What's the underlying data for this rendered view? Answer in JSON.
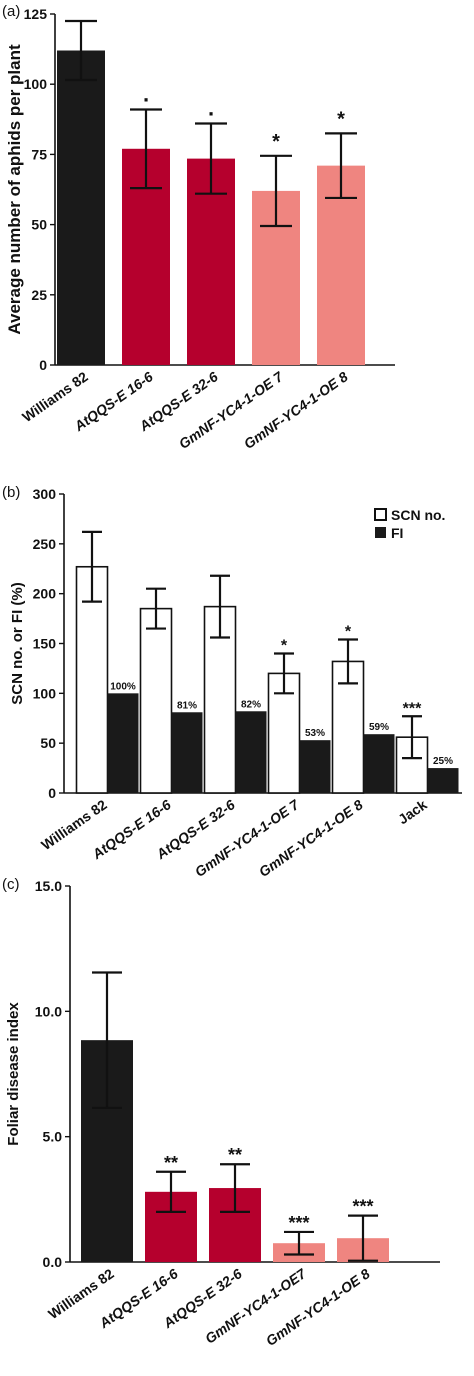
{
  "colors": {
    "black": "#1a1a1a",
    "crimson": "#b5002d",
    "salmon": "#ef8580",
    "white": "#ffffff"
  },
  "chart_data": [
    {
      "panel_label": "(a)",
      "type": "bar",
      "categories": [
        "Williams 82",
        "AtQQS-E 16-6",
        "AtQQS-E 32-6",
        "GmNF-YC4-1-OE 7",
        "GmNF-YC4-1-OE 8"
      ],
      "italic_categories": [
        false,
        true,
        true,
        true,
        true
      ],
      "values": [
        112,
        77,
        73.5,
        62,
        71
      ],
      "errors": [
        10.5,
        14,
        12.5,
        12.5,
        11.5
      ],
      "significance": [
        ".",
        ".",
        ".",
        "*",
        "*"
      ],
      "bar_colors": [
        "black",
        "crimson",
        "crimson",
        "salmon",
        "salmon"
      ],
      "ylabel": "Average number of aphids per plant",
      "xlabel": "",
      "ylim": [
        0,
        125
      ],
      "yticks": [
        "0",
        "25",
        "50",
        "75",
        "100",
        "125"
      ]
    },
    {
      "panel_label": "(b)",
      "type": "bar",
      "categories": [
        "Williams 82",
        "AtQQS-E 16-6",
        "AtQQS-E 32-6",
        "GmNF-YC4-1-OE 7",
        "GmNF-YC4-1-OE 8",
        "Jack"
      ],
      "italic_categories": [
        false,
        true,
        true,
        true,
        true,
        false
      ],
      "series": [
        {
          "name": "SCN no.",
          "values": [
            227,
            185,
            187,
            120,
            132,
            56
          ],
          "errors": [
            35,
            20,
            31,
            20,
            22,
            21
          ],
          "significance": [
            "",
            "",
            "",
            "*",
            "*",
            "***"
          ]
        },
        {
          "name": "FI",
          "values": [
            100,
            81,
            82,
            53,
            59,
            25
          ],
          "bar_labels": [
            "100%",
            "81%",
            "82%",
            "53%",
            "59%",
            "25%"
          ]
        }
      ],
      "ylabel": "SCN no. or FI (%)",
      "xlabel": "",
      "ylim": [
        0,
        300
      ],
      "yticks": [
        "0",
        "50",
        "100",
        "150",
        "200",
        "250",
        "300"
      ],
      "legend_position": "top-right"
    },
    {
      "panel_label": "(c)",
      "type": "bar",
      "categories": [
        "Williams 82",
        "AtQQS-E 16-6",
        "AtQQS-E 32-6",
        "GmNF-YC4-1-OE7",
        "GmNF-YC4-1-OE 8"
      ],
      "italic_categories": [
        false,
        true,
        true,
        true,
        true
      ],
      "values": [
        8.85,
        2.8,
        2.95,
        0.75,
        0.95
      ],
      "errors": [
        2.7,
        0.8,
        0.95,
        0.45,
        0.9
      ],
      "significance": [
        "",
        "**",
        "**",
        "***",
        "***"
      ],
      "bar_colors": [
        "black",
        "crimson",
        "crimson",
        "salmon",
        "salmon"
      ],
      "ylabel": "Foliar disease index",
      "xlabel": "",
      "ylim": [
        0,
        15
      ],
      "yticks": [
        "0.0",
        "5.0",
        "10.0",
        "15.0"
      ]
    }
  ]
}
